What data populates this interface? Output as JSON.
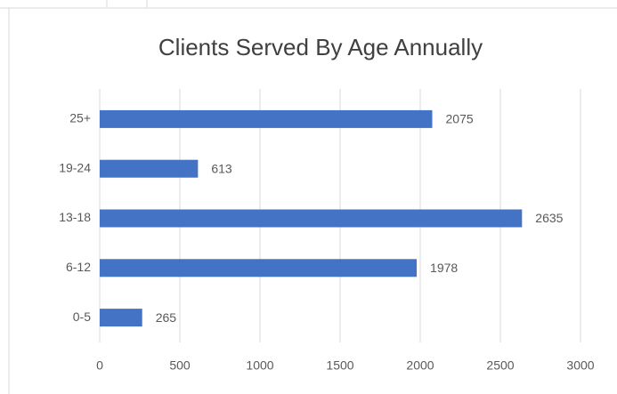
{
  "chart_data": {
    "type": "bar",
    "orientation": "horizontal",
    "title": "Clients Served By Age Annually",
    "categories": [
      "0-5",
      "6-12",
      "13-18",
      "19-24",
      "25+"
    ],
    "values": [
      265,
      1978,
      2635,
      613,
      2075
    ],
    "color": "#4472c4",
    "xlim": [
      0,
      3000
    ],
    "xticks": [
      0,
      500,
      1000,
      1500,
      2000,
      2500,
      3000
    ],
    "grid": true
  }
}
